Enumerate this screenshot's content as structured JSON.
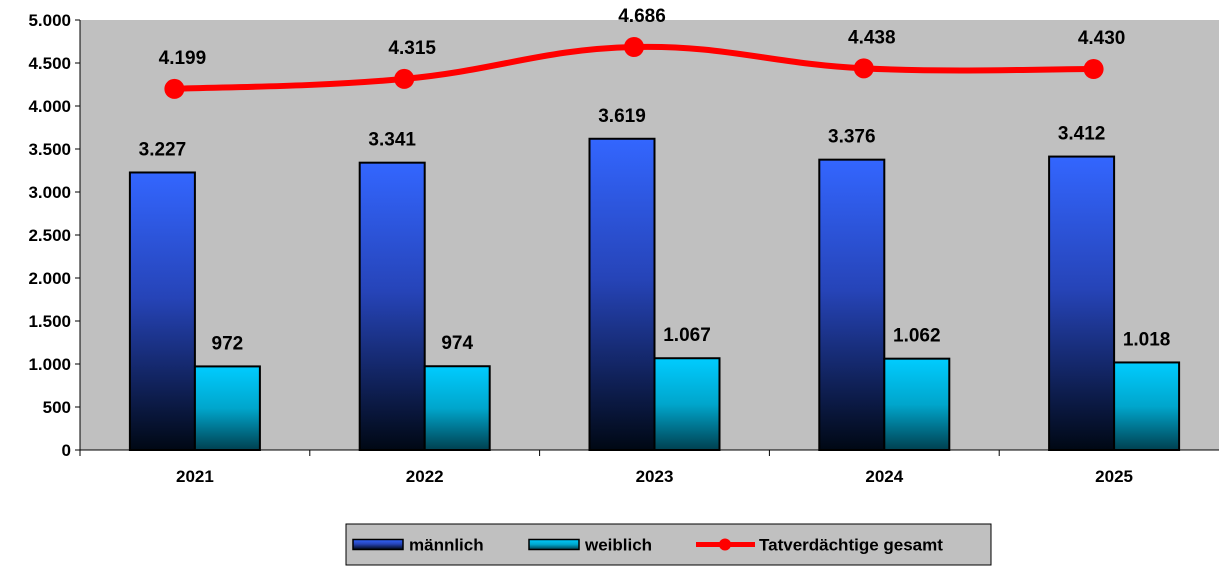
{
  "chart_data": {
    "type": "bar",
    "categories": [
      "2021",
      "2022",
      "2023",
      "2024",
      "2025"
    ],
    "series": [
      {
        "name": "männlich",
        "kind": "bar",
        "values": [
          3227,
          3341,
          3619,
          3376,
          3412
        ],
        "labels": [
          "3.227",
          "3.341",
          "3.619",
          "3.376",
          "3.412"
        ],
        "color": "#3366ff"
      },
      {
        "name": "weiblich",
        "kind": "bar",
        "values": [
          972,
          974,
          1067,
          1062,
          1018
        ],
        "labels": [
          "972",
          "974",
          "1.067",
          "1.062",
          "1.018"
        ],
        "color": "#00ccff"
      },
      {
        "name": "Tatverdächtige gesamt",
        "kind": "line",
        "values": [
          4199,
          4315,
          4686,
          4438,
          4430
        ],
        "labels": [
          "4.199",
          "4.315",
          "4.686",
          "4.438",
          "4.430"
        ],
        "color": "#ff0000"
      }
    ],
    "ylim": [
      0,
      5000
    ],
    "yticks": [
      0,
      500,
      1000,
      1500,
      2000,
      2500,
      3000,
      3500,
      4000,
      4500,
      5000
    ],
    "ytick_labels": [
      "0",
      "500",
      "1.000",
      "1.500",
      "2.000",
      "2.500",
      "3.000",
      "3.500",
      "4.000",
      "4.500",
      "5.000"
    ],
    "plot_background": "#c0c0c0",
    "grid": false,
    "legend_position": "bottom"
  }
}
